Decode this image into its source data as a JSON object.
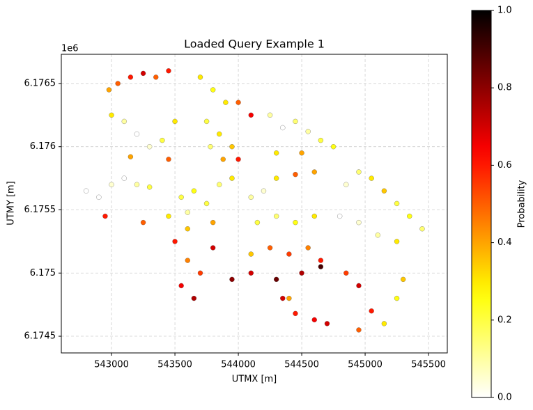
{
  "chart_data": {
    "type": "scatter",
    "title": "Loaded Query Example 1",
    "xlabel": "UTMX [m]",
    "ylabel": "UTMY [m]",
    "y_offset_label": "1e6",
    "colorbar_label": "Probability",
    "colormap": "hot_r",
    "grid": true,
    "xlim": [
      542604,
      545648
    ],
    "ylim": [
      6.174368,
      6.176731
    ],
    "xticks": [
      543000,
      543500,
      544000,
      544500,
      545000,
      545500
    ],
    "yticks": [
      6.1745,
      6.175,
      6.1755,
      6.176,
      6.1765
    ],
    "clim": [
      0,
      1
    ],
    "cticks": [
      {
        "value": 0,
        "label": "0.0"
      },
      {
        "value": 0.2,
        "label": "0.2"
      },
      {
        "value": 0.4,
        "label": "0.4"
      },
      {
        "value": 0.6,
        "label": "0.6"
      },
      {
        "value": 0.8,
        "label": "0.8"
      },
      {
        "value": 1,
        "label": "1.0"
      }
    ],
    "x": [
      542980,
      543050,
      543150,
      543250,
      543350,
      543450,
      543000,
      543100,
      543200,
      543300,
      543400,
      543500,
      543450,
      543150,
      543700,
      543800,
      543900,
      543750,
      543850,
      543950,
      544000,
      543780,
      544000,
      544100,
      544250,
      544350,
      544450,
      544550,
      544650,
      544750,
      544300,
      544500,
      542800,
      542900,
      543000,
      543100,
      543200,
      543300,
      542950,
      543250,
      543450,
      543550,
      543650,
      543750,
      543850,
      543950,
      543600,
      543800,
      544100,
      544200,
      544300,
      544450,
      544600,
      544150,
      544300,
      544450,
      544600,
      544100,
      544250,
      544400,
      544550,
      544650,
      544100,
      544300,
      544500,
      544650,
      544350,
      543950,
      543500,
      543600,
      543700,
      543800,
      543550,
      543650,
      544850,
      544950,
      545050,
      545150,
      545250,
      545350,
      545450,
      544800,
      544950,
      545100,
      545250,
      544850,
      544950,
      545050,
      545150,
      545250,
      545300,
      544950,
      544450,
      544600,
      544700,
      544400,
      543600,
      543880
    ],
    "y": [
      6.17645,
      6.1765,
      6.17655,
      6.17658,
      6.17655,
      6.1766,
      6.17625,
      6.1762,
      6.1761,
      6.176,
      6.17605,
      6.1762,
      6.1759,
      6.17592,
      6.17655,
      6.17645,
      6.17635,
      6.1762,
      6.1761,
      6.176,
      6.1759,
      6.176,
      6.17635,
      6.17625,
      6.17625,
      6.17615,
      6.1762,
      6.17612,
      6.17605,
      6.176,
      6.17595,
      6.17595,
      6.17565,
      6.1756,
      6.1757,
      6.17575,
      6.1757,
      6.17568,
      6.17545,
      6.1754,
      6.17545,
      6.1756,
      6.17565,
      6.17555,
      6.1757,
      6.17575,
      6.17535,
      6.1754,
      6.1756,
      6.17565,
      6.17575,
      6.17578,
      6.1758,
      6.1754,
      6.17545,
      6.1754,
      6.17545,
      6.17515,
      6.1752,
      6.17515,
      6.1752,
      6.1751,
      6.175,
      6.17495,
      6.175,
      6.17505,
      6.1748,
      6.17495,
      6.17525,
      6.1751,
      6.175,
      6.1752,
      6.1749,
      6.1748,
      6.1757,
      6.1758,
      6.17575,
      6.17565,
      6.17555,
      6.17545,
      6.17535,
      6.17545,
      6.1754,
      6.1753,
      6.17525,
      6.175,
      6.1749,
      6.1747,
      6.1746,
      6.1748,
      6.17495,
      6.17455,
      6.17468,
      6.17463,
      6.1746,
      6.1748,
      6.17548,
      6.1759
    ],
    "values": [
      0.4,
      0.5,
      0.6,
      0.7,
      0.5,
      0.6,
      0.3,
      0.1,
      0,
      0.05,
      0.2,
      0.3,
      0.5,
      0.4,
      0.3,
      0.25,
      0.3,
      0.2,
      0.3,
      0.35,
      0.6,
      0.15,
      0.5,
      0.65,
      0.1,
      0,
      0.15,
      0.1,
      0.2,
      0.25,
      0.3,
      0.4,
      0,
      0,
      0.05,
      0,
      0.1,
      0.2,
      0.6,
      0.5,
      0.3,
      0.2,
      0.25,
      0.2,
      0.15,
      0.3,
      0.35,
      0.4,
      0.1,
      0.05,
      0.3,
      0.5,
      0.4,
      0.2,
      0.15,
      0.25,
      0.3,
      0.35,
      0.5,
      0.55,
      0.45,
      0.6,
      0.7,
      0.85,
      0.75,
      0.9,
      0.7,
      0.8,
      0.6,
      0.45,
      0.55,
      0.7,
      0.65,
      0.75,
      0.05,
      0.15,
      0.3,
      0.35,
      0.2,
      0.25,
      0.15,
      0,
      0.05,
      0.1,
      0.3,
      0.55,
      0.7,
      0.6,
      0.3,
      0.25,
      0.35,
      0.5,
      0.6,
      0.65,
      0.7,
      0.4,
      0.1,
      0.4
    ]
  }
}
